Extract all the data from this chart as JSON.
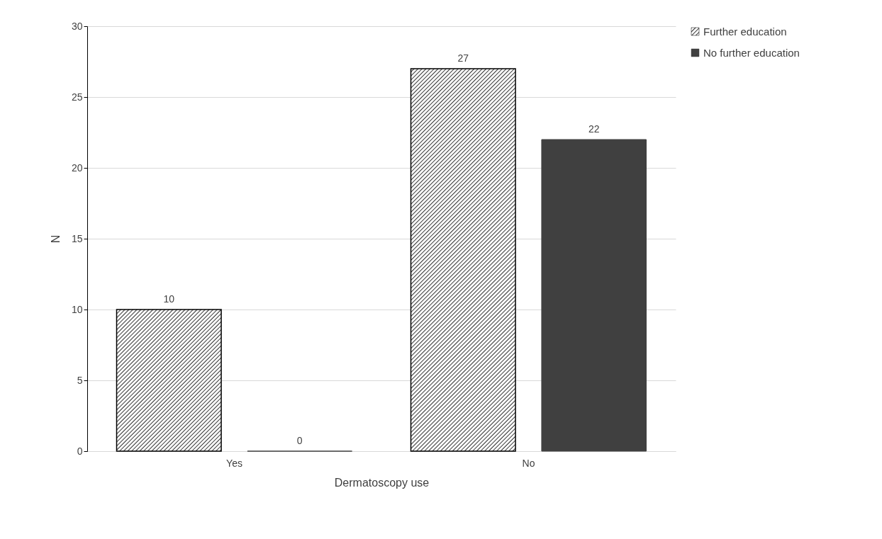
{
  "chart_data": {
    "type": "bar",
    "xlabel": "Dermatoscopy use",
    "ylabel": "N",
    "categories": [
      "Yes",
      "No"
    ],
    "series": [
      {
        "name": "Further education",
        "color": "#000000",
        "values": [
          10,
          27
        ]
      },
      {
        "name": "No further education",
        "color": "#404040",
        "values": [
          0,
          22
        ]
      }
    ],
    "ylim": [
      0,
      30
    ],
    "yticks": [
      0,
      5,
      10,
      15,
      20,
      25,
      30
    ],
    "grid": "y",
    "legend": "right",
    "data_labels": true
  }
}
